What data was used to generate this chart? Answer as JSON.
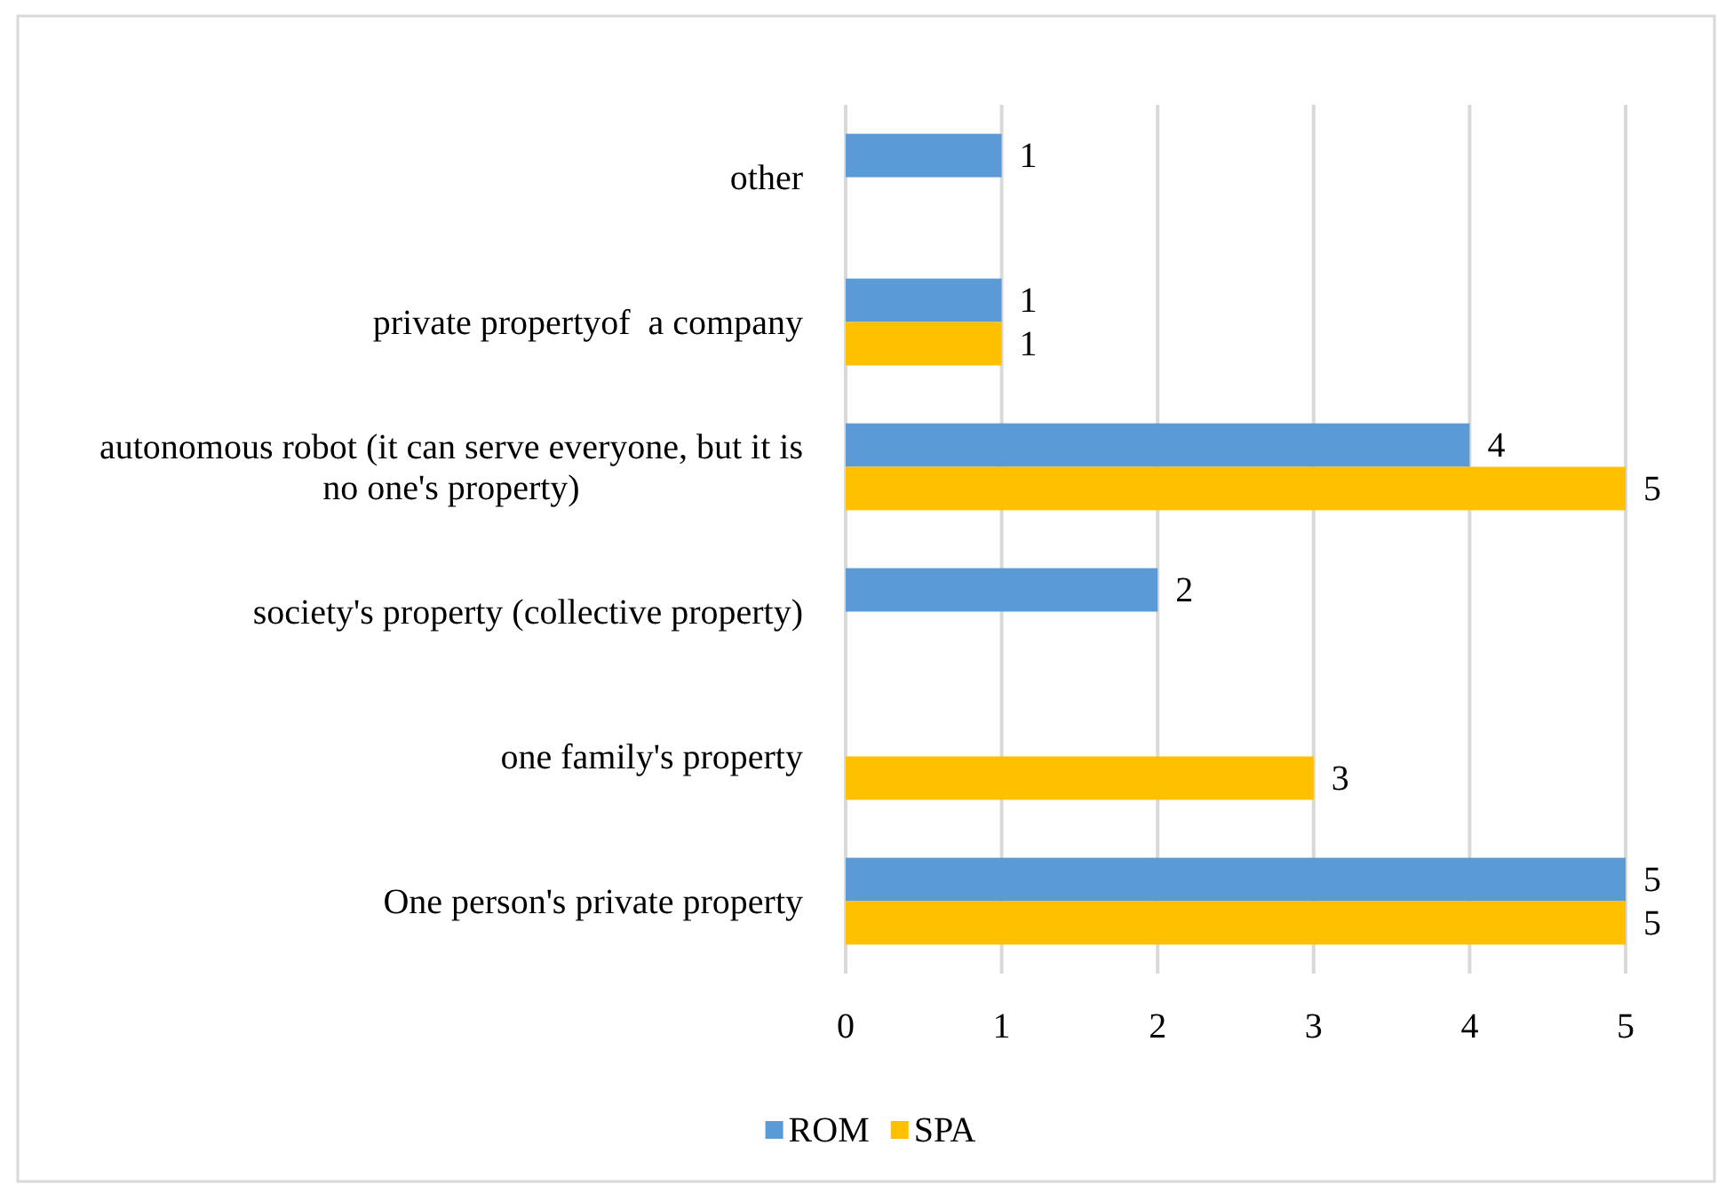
{
  "chart_data": {
    "type": "bar",
    "orientation": "horizontal",
    "categories": [
      "other",
      "private propertyof  a company",
      "autonomous robot (it can serve everyone, but it is no one's property)",
      "society's property (collective property)",
      "one family's property",
      "One person's private property"
    ],
    "series": [
      {
        "name": "ROM",
        "color": "#5b9bd5",
        "values": [
          1,
          1,
          4,
          2,
          null,
          5
        ]
      },
      {
        "name": "SPA",
        "color": "#ffc000",
        "values": [
          null,
          1,
          5,
          null,
          3,
          5
        ]
      }
    ],
    "xlim": [
      0,
      5
    ],
    "xticks": [
      0,
      1,
      2,
      3,
      4,
      5
    ],
    "grid": "x",
    "legend": "bottom",
    "data_labels": true
  }
}
